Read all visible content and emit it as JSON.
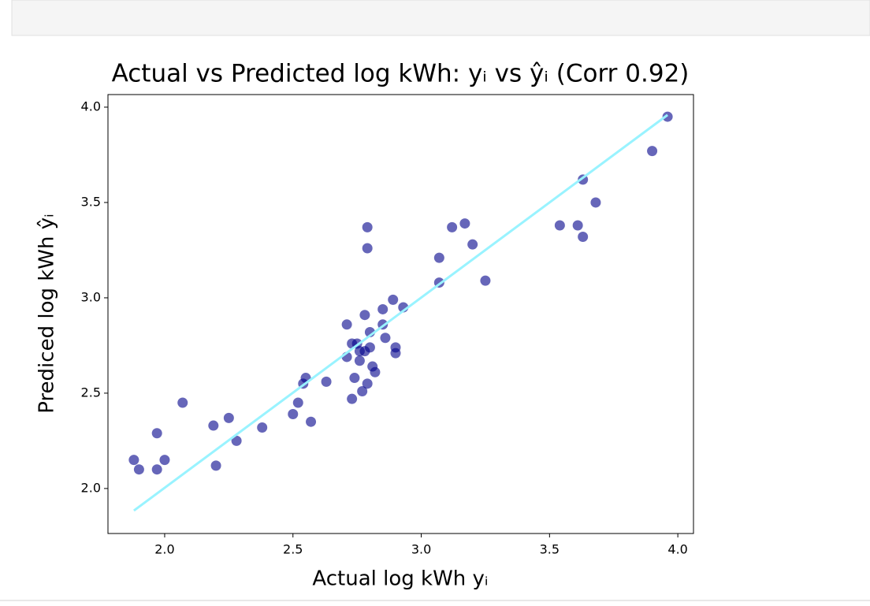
{
  "chart_data": {
    "type": "scatter",
    "title": "Actual vs Predicted log kWh: yᵢ vs ŷᵢ (Corr 0.92)",
    "x_label": "Actual log kWh yᵢ",
    "y_label": "Prediced log kWh ŷᵢ",
    "xlim": [
      1.779,
      4.061
    ],
    "ylim": [
      1.764,
      4.066
    ],
    "xticks": [
      {
        "value": 2,
        "label": "2.0"
      },
      {
        "value": 2.5,
        "label": "2.5"
      },
      {
        "value": 3,
        "label": "3.0"
      },
      {
        "value": 3.5,
        "label": "3.5"
      },
      {
        "value": 4,
        "label": "4.0"
      }
    ],
    "yticks": [
      {
        "value": 2,
        "label": "2.0"
      },
      {
        "value": 2.5,
        "label": "2.5"
      },
      {
        "value": 3,
        "label": "3.0"
      },
      {
        "value": 3.5,
        "label": "3.5"
      },
      {
        "value": 4,
        "label": "4.0"
      }
    ],
    "grid": false,
    "points": {
      "color": "#00008b",
      "alpha": 0.6,
      "x": [
        1.88,
        1.9,
        1.97,
        1.97,
        2.0,
        2.07,
        2.19,
        2.2,
        2.25,
        2.28,
        2.38,
        2.5,
        2.52,
        2.54,
        2.55,
        2.57,
        2.63,
        2.71,
        2.71,
        2.73,
        2.73,
        2.74,
        2.75,
        2.76,
        2.76,
        2.77,
        2.78,
        2.78,
        2.79,
        2.79,
        2.79,
        2.8,
        2.8,
        2.81,
        2.82,
        2.85,
        2.85,
        2.86,
        2.89,
        2.9,
        2.9,
        2.93,
        3.07,
        3.07,
        3.12,
        3.17,
        3.2,
        3.25,
        3.54,
        3.61,
        3.63,
        3.63,
        3.68,
        3.9,
        3.96
      ],
      "y": [
        2.15,
        2.1,
        2.29,
        2.1,
        2.15,
        2.45,
        2.33,
        2.12,
        2.37,
        2.25,
        2.32,
        2.39,
        2.45,
        2.55,
        2.58,
        2.35,
        2.56,
        2.86,
        2.69,
        2.76,
        2.47,
        2.58,
        2.76,
        2.72,
        2.67,
        2.51,
        2.91,
        2.72,
        3.37,
        2.55,
        3.26,
        2.82,
        2.74,
        2.64,
        2.61,
        2.86,
        2.94,
        2.79,
        2.99,
        2.74,
        2.71,
        2.95,
        3.08,
        3.21,
        3.37,
        3.39,
        3.28,
        3.09,
        3.38,
        3.38,
        3.62,
        3.32,
        3.5,
        3.77,
        3.95
      ]
    },
    "fit_line": {
      "color": "#99f3ff",
      "x": [
        1.88,
        3.96
      ],
      "y": [
        1.884,
        3.959
      ]
    }
  }
}
